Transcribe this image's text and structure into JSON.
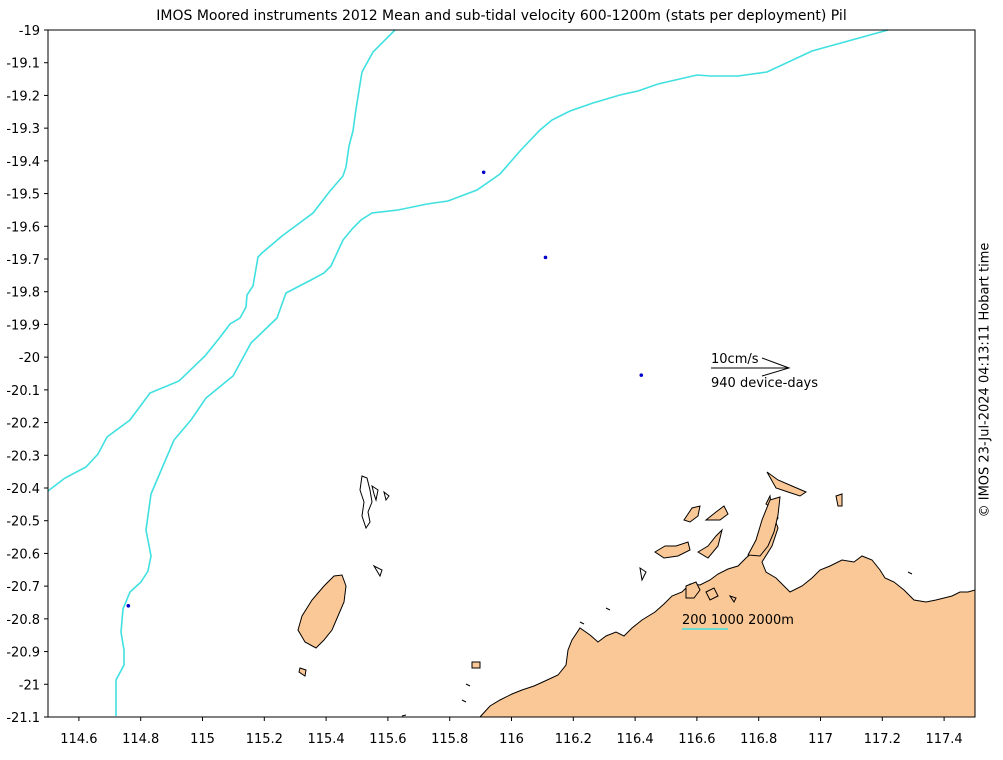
{
  "title": "IMOS Moored instruments 2012 Mean and sub-tidal velocity 600-1200m (stats per deployment) Pil",
  "credit": "© IMOS 23-Jul-2024 04:13:11 Hobart time",
  "chart_data": {
    "type": "map",
    "xlim": [
      114.5,
      117.5
    ],
    "ylim": [
      -21.1,
      -19.0
    ],
    "x_ticks": [
      "114.6",
      "114.8",
      "115",
      "115.2",
      "115.4",
      "115.6",
      "115.8",
      "116",
      "116.2",
      "116.4",
      "116.6",
      "116.8",
      "117",
      "117.2",
      "117.4"
    ],
    "y_ticks": [
      "-19",
      "-19.1",
      "-19.2",
      "-19.3",
      "-19.4",
      "-19.5",
      "-19.6",
      "-19.7",
      "-19.8",
      "-19.9",
      "-20",
      "-20.1",
      "-20.2",
      "-20.3",
      "-20.4",
      "-20.5",
      "-20.6",
      "-20.7",
      "-20.8",
      "-20.9",
      "-21",
      "-21.1"
    ],
    "moorings": [
      {
        "lon": 115.91,
        "lat": -19.435
      },
      {
        "lon": 116.11,
        "lat": -19.695
      },
      {
        "lon": 116.42,
        "lat": -20.055
      },
      {
        "lon": 114.76,
        "lat": -20.76
      }
    ],
    "scale": {
      "speed_label": "10cm/s",
      "days_label": "940 device-days"
    },
    "bathymetry_legend": "200 1000 2000m",
    "colors": {
      "isobath": "#40e0e0",
      "land": "#fac896",
      "coast": "#000000",
      "mooring": "#0000cc"
    }
  }
}
